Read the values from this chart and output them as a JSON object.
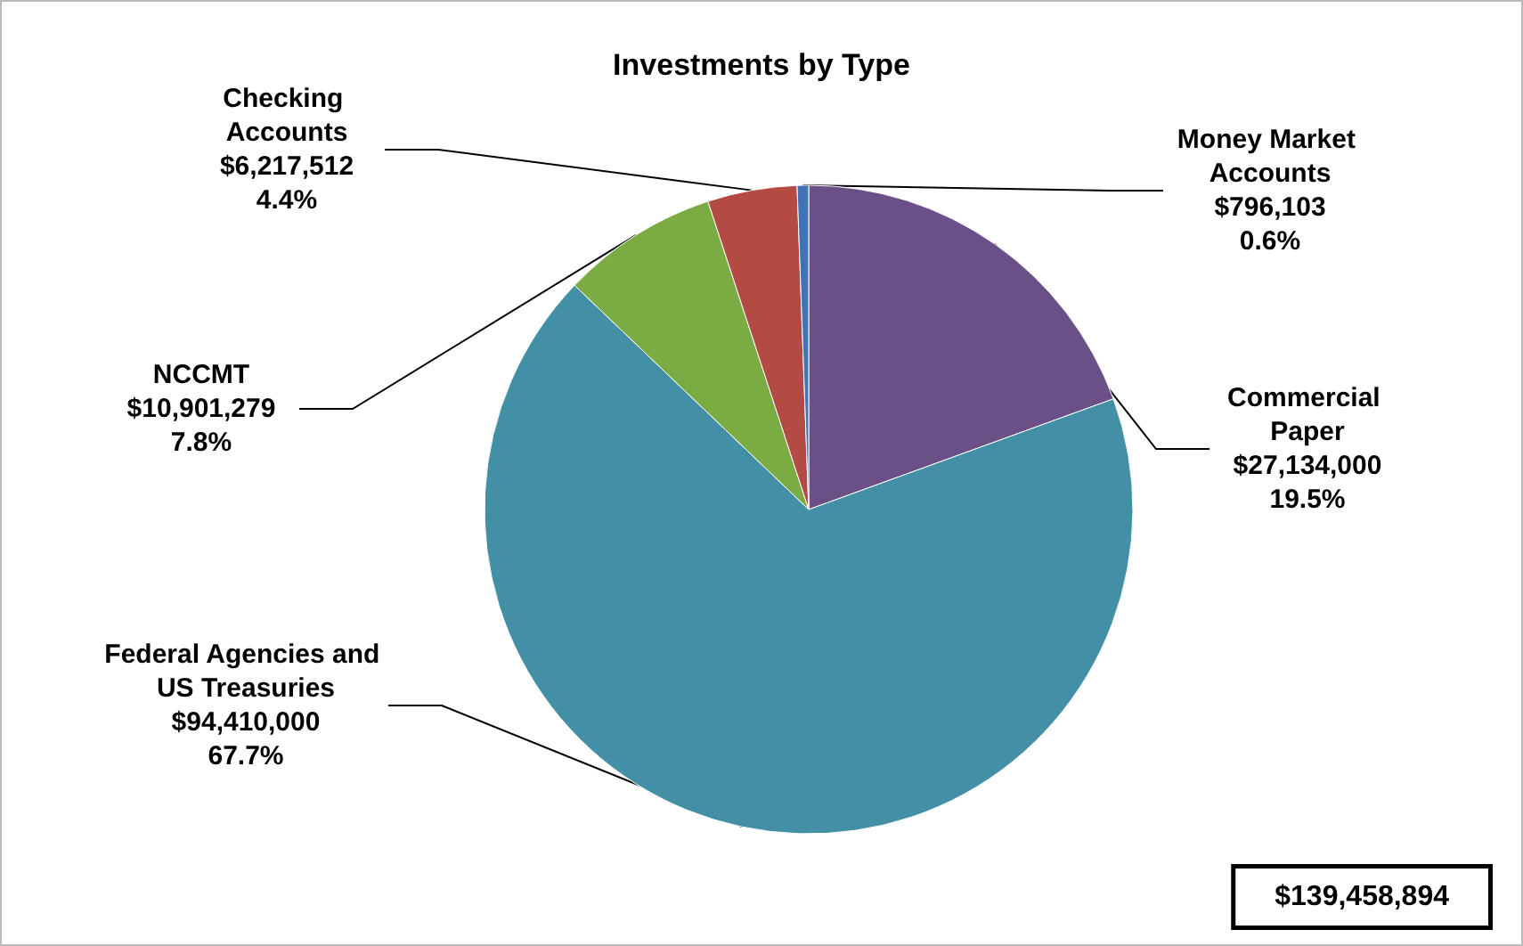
{
  "chart_data": {
    "type": "pie",
    "title": "Investments by Type",
    "categories": [
      "Commercial Paper",
      "Federal Agencies and US Treasuries",
      "NCCMT",
      "Checking Accounts",
      "Money Market Accounts"
    ],
    "values": [
      27134000,
      94410000,
      10901279,
      6217512,
      796103
    ],
    "value_labels": [
      "$27,134,000\n19.5%",
      "$94,410,000\n67.7%",
      "$10,901,279\n7.8%",
      "$6,217,512\n4.4%",
      "$796,103\n0.6%"
    ],
    "colors": [
      "#6b5088",
      "#4390a6",
      "#7bab43",
      "#b34a44",
      "#3f73b6"
    ],
    "annotations": [
      "$139,458,894"
    ],
    "legend": false
  }
}
